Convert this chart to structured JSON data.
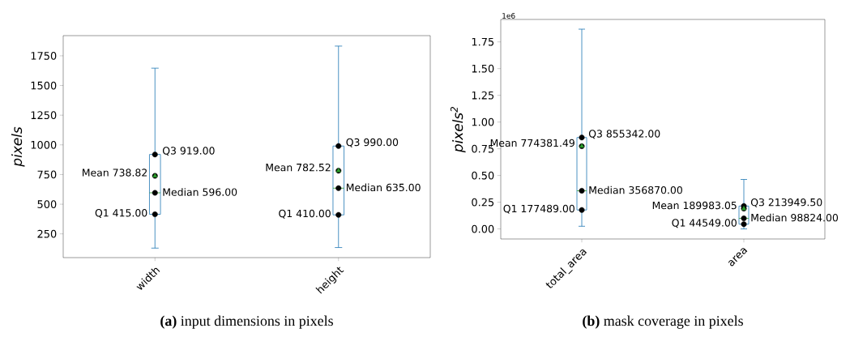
{
  "chart_data": [
    {
      "type": "box",
      "title": "**(a)** input dimensions in pixels",
      "ylabel": "pixels",
      "categories": [
        "width",
        "height"
      ],
      "color": "#1f77b4",
      "boxes": [
        {
          "low": 130,
          "q1": 415,
          "median": 596,
          "q3": 919,
          "high": 1646,
          "mean": 738.82
        },
        {
          "low": 135,
          "q1": 410,
          "median": 635,
          "q3": 990,
          "high": 1832,
          "mean": 782.52
        }
      ],
      "ylim": [
        50,
        1920
      ],
      "yticks": [
        250,
        500,
        750,
        1000,
        1250,
        1500,
        1750
      ],
      "annotations": [
        {
          "text": "Q1 415.00",
          "x": "width",
          "y": 415
        },
        {
          "text": "Median 596.00",
          "x": "width",
          "y": 596
        },
        {
          "text": "Mean 738.82",
          "x": "width",
          "y": 738.82
        },
        {
          "text": "Q3 919.00",
          "x": "width",
          "y": 919
        },
        {
          "text": "Q1 410.00",
          "x": "height",
          "y": 410
        },
        {
          "text": "Median 635.00",
          "x": "height",
          "y": 635
        },
        {
          "text": "Mean 782.52",
          "x": "height",
          "y": 782.52
        },
        {
          "text": "Q3 990.00",
          "x": "height",
          "y": 990
        }
      ]
    },
    {
      "type": "box",
      "title": "**(b)** mask coverage in pixels",
      "ylabel": "pixels$^{2}$",
      "categories": [
        "total_area",
        "area"
      ],
      "color": "#1f77b4",
      "boxes": [
        {
          "low": 0.025,
          "q1": 0.177489,
          "median": 0.35687,
          "q3": 0.855342,
          "high": 1.869,
          "mean": 0.77438149
        },
        {
          "low": 0,
          "q1": 0.044549,
          "median": 0.098824,
          "q3": 0.2139495,
          "high": 0.463,
          "mean": 0.18998305
        }
      ],
      "ylim": [
        -0.094,
        1.96
      ],
      "yticks": [
        {
          "value": 0,
          "label": "0.00"
        },
        0.25,
        {
          "value": 0.5,
          "label": "0.50"
        },
        0.75,
        {
          "value": 1,
          "label": "1.00"
        },
        1.25,
        {
          "value": 1.5,
          "label": "1.50"
        },
        1.75
      ],
      "annotations": [
        "1e6",
        {
          "text": "Q1 177489.00",
          "x": "total_area",
          "y": 0.177489
        },
        {
          "text": "Median 356870.00",
          "x": "total_area",
          "y": 0.35687
        },
        {
          "text": "Mean 774381.49",
          "x": "total_area",
          "y": 0.77438149
        },
        {
          "text": "Q3 855342.00",
          "x": "total_area",
          "y": 0.855342
        },
        {
          "text": "Q1 44549.00",
          "x": "area",
          "y": 0.044549
        },
        {
          "text": "Median 98824.00",
          "x": "area",
          "y": 0.098824
        },
        {
          "text": "Mean 189983.05",
          "x": "area",
          "y": 0.18998305
        },
        {
          "text": "Q3 213949.50",
          "x": "area",
          "y": 0.2139495
        }
      ]
    }
  ]
}
